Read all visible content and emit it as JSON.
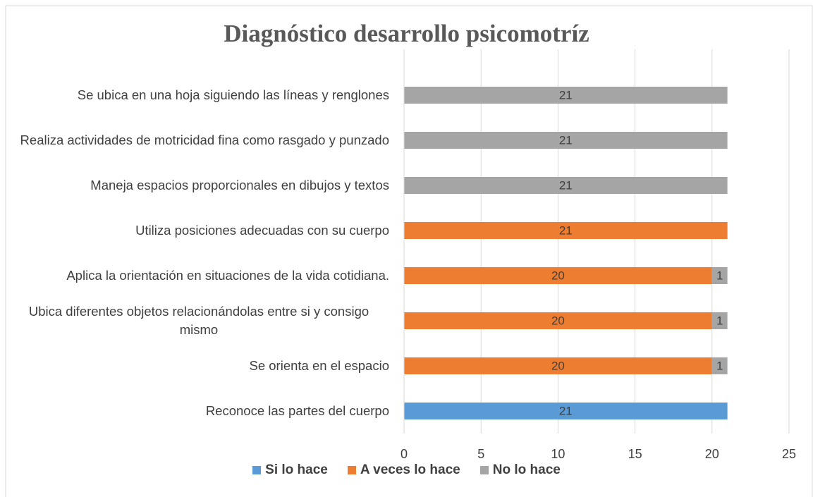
{
  "chart_data": {
    "type": "stacked_barh",
    "title": "Diagnóstico desarrollo psicomotríz",
    "categories": [
      "Reconoce las partes del cuerpo",
      "Se orienta en el espacio",
      "Ubica diferentes objetos relacionándolas entre si y consigo mismo",
      "Aplica la orientación en situaciones de la vida cotidiana.",
      "Utiliza posiciones adecuadas con su cuerpo",
      "Maneja espacios proporcionales en dibujos y textos",
      "Realiza actividades de motricidad fina como rasgado y punzado",
      "Se ubica en una hoja siguiendo las líneas y renglones"
    ],
    "series": [
      {
        "name": "Si lo hace",
        "color": "#5b9bd5",
        "values": [
          21,
          null,
          null,
          null,
          null,
          null,
          null,
          null
        ]
      },
      {
        "name": "A veces lo hace",
        "color": "#ed7d31",
        "values": [
          null,
          20,
          20,
          20,
          21,
          null,
          null,
          null
        ]
      },
      {
        "name": "No lo hace",
        "color": "#a5a5a5",
        "values": [
          null,
          1,
          1,
          1,
          null,
          21,
          21,
          21
        ]
      }
    ],
    "xlim": [
      0,
      25
    ],
    "xticks": [
      0,
      5,
      10,
      15,
      20,
      25
    ],
    "grid": true,
    "legend": "bottom"
  }
}
